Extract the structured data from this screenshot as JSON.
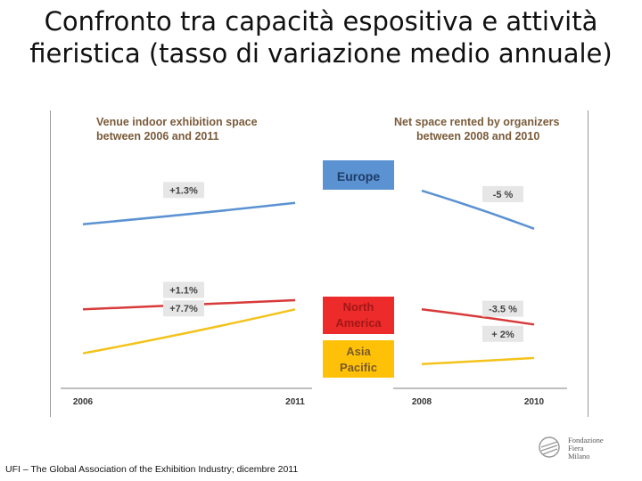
{
  "title": "Confronto tra capacità espositiva e attività fieristica (tasso di variazione medio annuale)",
  "source": "UFI – The Global Association of the Exhibition Industry; dicembre 2011",
  "logo": {
    "line1": "Fondazione",
    "line2": "Fiera",
    "line3": "Milano"
  },
  "colors": {
    "europe": "#5b92d2",
    "north_america": "#d83a3a",
    "asia_pacific": "#f3c31c",
    "europe_box": "#5b92d2",
    "na_box": "#ee2b2b",
    "ap_box": "#ffc107",
    "label_box": "#e6e6e6"
  },
  "legend": {
    "europe": "Europe",
    "north_america_line1": "North",
    "north_america_line2": "America",
    "asia_pacific_line1": "Asia",
    "asia_pacific_line2": "Pacific"
  },
  "chart_data": [
    {
      "type": "line",
      "title_line1": "Venue indoor exhibition space",
      "title_line2": "between 2006 and 2011",
      "x": [
        "2006",
        "2011"
      ],
      "series": [
        {
          "name": "Europe",
          "rate_label": "+1.3%",
          "values": [
            78,
            92
          ]
        },
        {
          "name": "North America",
          "rate_label": "+1.1%",
          "values": [
            22,
            28
          ]
        },
        {
          "name": "Asia Pacific",
          "rate_label": "+7.7%",
          "values": [
            -7,
            22
          ]
        }
      ],
      "ylim": [
        -30,
        120
      ]
    },
    {
      "type": "line",
      "title_line1": "Net space rented by organizers",
      "title_line2": "between 2008 and 2010",
      "x": [
        "2008",
        "2010"
      ],
      "series": [
        {
          "name": "Europe",
          "rate_label": "-5 %",
          "values": [
            100,
            75
          ]
        },
        {
          "name": "North America",
          "rate_label": "-3.5 %",
          "values": [
            22,
            12
          ]
        },
        {
          "name": "Asia Pacific",
          "rate_label": "+ 2%",
          "values": [
            -14,
            -10
          ]
        }
      ],
      "ylim": [
        -30,
        120
      ]
    }
  ]
}
